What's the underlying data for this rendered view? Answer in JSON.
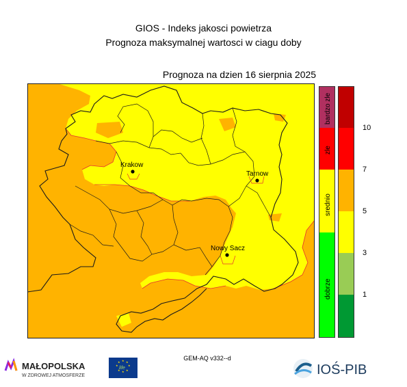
{
  "header": {
    "title_line1": "GIOS - Indeks jakosci powietrza",
    "title_line2": "Prognoza maksymalnej wartosci w ciagu doby",
    "forecast_date": "Prognoza na dzien  16 sierpnia 2025"
  },
  "map": {
    "colors": {
      "orange": "#FFB300",
      "yellow": "#FFFF00",
      "border": "#1a1a1a",
      "red_line": "#E53030"
    },
    "cities": [
      {
        "name": "Krakow"
      },
      {
        "name": "Tarnow"
      },
      {
        "name": "Nowy Sacz"
      }
    ]
  },
  "legend": {
    "categories": [
      {
        "label": "bardzo zle",
        "color": "#B03060"
      },
      {
        "label": "zle",
        "color": "#FF0000"
      },
      {
        "label": "srednio",
        "color": "#FFFF00"
      },
      {
        "label": "dobrze",
        "color": "#00FF00"
      }
    ],
    "index_colors": [
      "#009933",
      "#99CC55",
      "#FFFF00",
      "#FFB300",
      "#FF0000",
      "#C00000"
    ],
    "ticks": [
      "10",
      "7",
      "5",
      "3",
      "1"
    ]
  },
  "footer": {
    "model": "GEM-AQ v332--d",
    "malopolska_name": "MAŁOPOLSKA",
    "malopolska_tagline": "W ZDROWEJ ATMOSFERZE",
    "eu_label": "life",
    "ios_label": "IOŚ-PIB"
  }
}
